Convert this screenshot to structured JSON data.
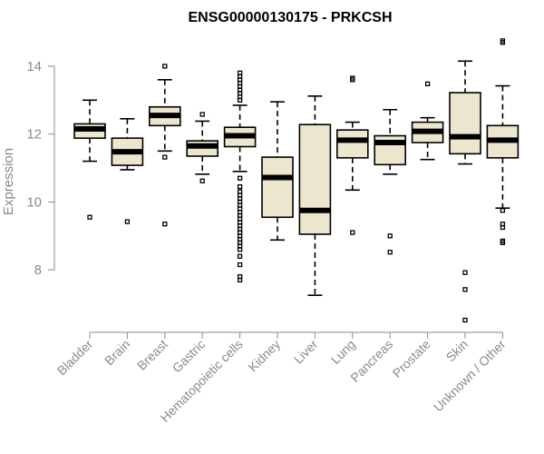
{
  "chart_data": {
    "type": "boxplot",
    "title": "ENSG00000130175 - PRKCSH",
    "xlabel": "",
    "ylabel": "Expression",
    "ylim": [
      6.4,
      14.8
    ],
    "yticks": [
      8,
      10,
      12,
      14
    ],
    "box_fill": "#ede6ce",
    "categories": [
      "Bladder",
      "Brain",
      "Breast",
      "Gastric",
      "Hematopoietic cells",
      "Kidney",
      "Liver",
      "Lung",
      "Pancreas",
      "Prostate",
      "Skin",
      "Unknown / Other"
    ],
    "boxes": [
      {
        "name": "Bladder",
        "whisker_low": 11.2,
        "q1": 11.88,
        "median": 12.15,
        "q3": 12.3,
        "whisker_high": 13.0,
        "outliers": [
          9.55
        ]
      },
      {
        "name": "Brain",
        "whisker_low": 10.95,
        "q1": 11.08,
        "median": 11.48,
        "q3": 11.88,
        "whisker_high": 12.45,
        "outliers": [
          9.42
        ]
      },
      {
        "name": "Breast",
        "whisker_low": 11.5,
        "q1": 12.25,
        "median": 12.55,
        "q3": 12.8,
        "whisker_high": 13.6,
        "outliers": [
          14.0,
          11.32,
          9.35
        ]
      },
      {
        "name": "Gastric",
        "whisker_low": 10.82,
        "q1": 11.35,
        "median": 11.65,
        "q3": 11.8,
        "whisker_high": 12.38,
        "outliers": [
          12.58,
          10.62
        ]
      },
      {
        "name": "Hematopoietic cells",
        "whisker_low": 10.9,
        "q1": 11.63,
        "median": 11.95,
        "q3": 12.2,
        "whisker_high": 12.85,
        "outliers": [
          13.8,
          13.7,
          13.6,
          13.5,
          13.4,
          13.3,
          13.2,
          13.1,
          13.0,
          10.7,
          10.45,
          10.3,
          10.2,
          10.1,
          10.0,
          9.9,
          9.8,
          9.7,
          9.6,
          9.5,
          9.4,
          9.3,
          9.2,
          9.1,
          9.0,
          8.9,
          8.8,
          8.7,
          8.6,
          8.4,
          8.15,
          7.8,
          7.7
        ]
      },
      {
        "name": "Kidney",
        "whisker_low": 8.88,
        "q1": 9.55,
        "median": 10.72,
        "q3": 11.32,
        "whisker_high": 12.95,
        "outliers": []
      },
      {
        "name": "Liver",
        "whisker_low": 7.25,
        "q1": 9.05,
        "median": 9.75,
        "q3": 12.28,
        "whisker_high": 13.12,
        "outliers": []
      },
      {
        "name": "Lung",
        "whisker_low": 10.35,
        "q1": 11.3,
        "median": 11.82,
        "q3": 12.12,
        "whisker_high": 12.35,
        "outliers": [
          13.65,
          13.6,
          9.1
        ]
      },
      {
        "name": "Pancreas",
        "whisker_low": 10.82,
        "q1": 11.1,
        "median": 11.75,
        "q3": 11.95,
        "whisker_high": 12.72,
        "outliers": [
          9.0,
          8.52
        ]
      },
      {
        "name": "Prostate",
        "whisker_low": 11.25,
        "q1": 11.75,
        "median": 12.08,
        "q3": 12.35,
        "whisker_high": 12.48,
        "outliers": [
          13.48
        ]
      },
      {
        "name": "Skin",
        "whisker_low": 11.12,
        "q1": 11.42,
        "median": 11.92,
        "q3": 13.22,
        "whisker_high": 14.15,
        "outliers": [
          7.92,
          7.42,
          6.52
        ]
      },
      {
        "name": "Unknown / Other",
        "whisker_low": 9.82,
        "q1": 11.3,
        "median": 11.82,
        "q3": 12.25,
        "whisker_high": 13.42,
        "outliers": [
          14.75,
          14.7,
          9.75,
          9.35,
          9.25,
          8.85,
          8.8
        ]
      }
    ]
  }
}
